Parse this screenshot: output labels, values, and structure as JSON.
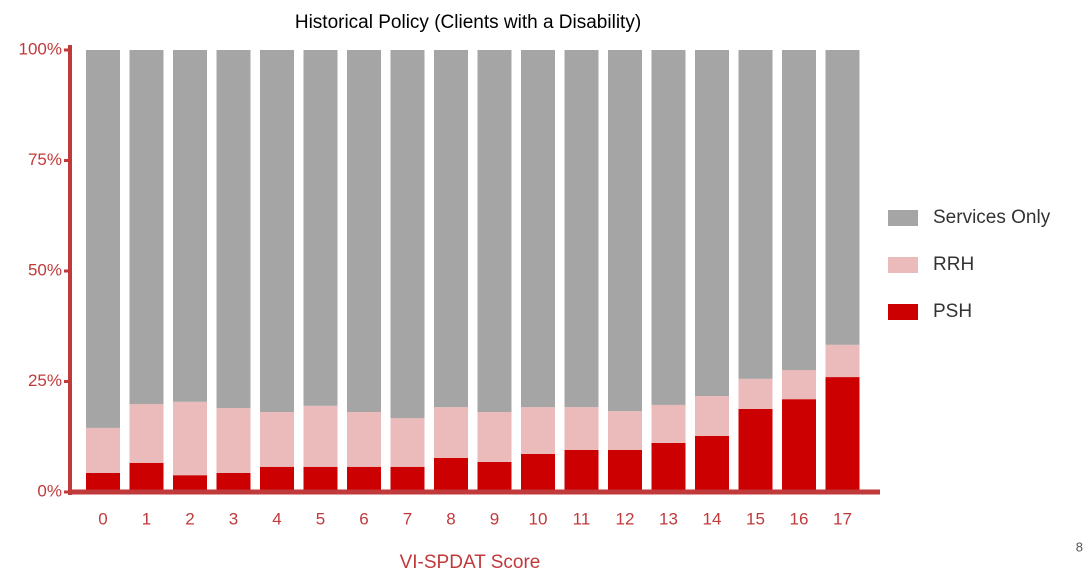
{
  "chart_data": {
    "type": "stacked_bar",
    "title": "Historical Policy (Clients with a Disability)",
    "x_label": "VI-SPDAT Score",
    "categories": [
      "0",
      "1",
      "2",
      "3",
      "4",
      "5",
      "6",
      "7",
      "8",
      "9",
      "10",
      "11",
      "12",
      "13",
      "14",
      "15",
      "16",
      "17"
    ],
    "series": [
      {
        "name": "PSH",
        "color": "#cc0000",
        "values": [
          4.3,
          6.6,
          3.8,
          4.3,
          5.7,
          5.7,
          5.7,
          5.7,
          7.7,
          6.8,
          8.6,
          9.5,
          9.5,
          11.1,
          12.7,
          18.8,
          21.0,
          26.0
        ]
      },
      {
        "name": "RRH",
        "color": "#ebbaba",
        "values": [
          10.2,
          13.3,
          16.6,
          14.7,
          12.4,
          13.8,
          12.4,
          11.0,
          11.5,
          11.3,
          10.6,
          9.7,
          8.8,
          8.6,
          9.0,
          6.8,
          6.6,
          7.3
        ]
      },
      {
        "name": "Services Only",
        "color": "#a5a5a5",
        "values": [
          85.5,
          80.1,
          79.6,
          81.0,
          81.9,
          80.5,
          81.9,
          83.3,
          80.8,
          81.9,
          80.8,
          80.8,
          81.7,
          80.3,
          78.3,
          74.4,
          72.4,
          66.7
        ]
      }
    ],
    "ylim": [
      0,
      100
    ],
    "yticks": [
      {
        "value": 0,
        "label": "0%"
      },
      {
        "value": 25,
        "label": "25%"
      },
      {
        "value": 50,
        "label": "50%"
      },
      {
        "value": 75,
        "label": "75%"
      },
      {
        "value": 100,
        "label": "100%"
      }
    ],
    "legend": "right"
  },
  "page_number": "8"
}
